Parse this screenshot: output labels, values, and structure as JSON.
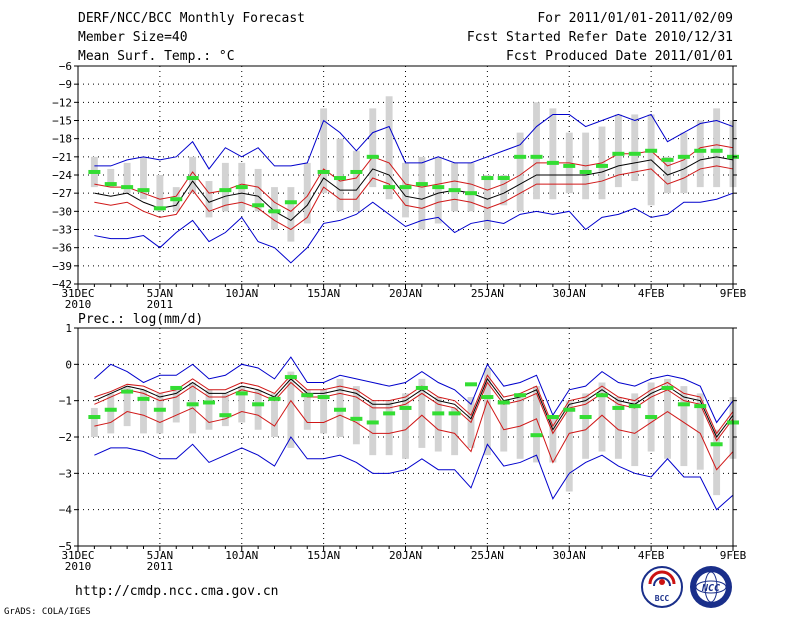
{
  "header": {
    "title": "DERF/NCC/BCC Monthly Forecast",
    "member_size": "Member Size=40",
    "variable": "Mean Surf. Temp.: °C",
    "period": "For 2011/01/01-2011/02/09",
    "started": "Fcst Started Refer Date 2010/12/31",
    "produced": "Fcst Produced Date 2011/01/01"
  },
  "footer": {
    "url": "http://cmdp.ncc.cma.gov.cn",
    "grads": "GrADS: COLA/IGES",
    "logo1_text": "BCC",
    "logo2_text": "NCC"
  },
  "colors": {
    "mean": "#000000",
    "spread": "#d01818",
    "extreme": "#0000cc",
    "observed": "#33dd33",
    "box": "#d3d3d3"
  },
  "chart_data": [
    {
      "type": "line",
      "title": "Mean Surf. Temp.: °C",
      "xlabel": "",
      "ylabel": "°C",
      "ylim": [
        -42,
        -6
      ],
      "yticks": [
        -6,
        -9,
        -12,
        -15,
        -18,
        -21,
        -24,
        -27,
        -30,
        -33,
        -36,
        -39,
        -42
      ],
      "xtick_days": [
        0,
        5,
        10,
        15,
        20,
        25,
        30,
        35,
        40
      ],
      "xtick_labels": [
        "31DEC",
        "5JAN",
        "10JAN",
        "15JAN",
        "20JAN",
        "25JAN",
        "30JAN",
        "4FEB",
        "9FEB"
      ],
      "xtick_sublabels": [
        "2010",
        "2011",
        "",
        "",
        "",
        "",
        "",
        "",
        ""
      ],
      "days": [
        1,
        2,
        3,
        4,
        5,
        6,
        7,
        8,
        9,
        10,
        11,
        12,
        13,
        14,
        15,
        16,
        17,
        18,
        19,
        20,
        21,
        22,
        23,
        24,
        25,
        26,
        27,
        28,
        29,
        30,
        31,
        32,
        33,
        34,
        35,
        36,
        37,
        38,
        39,
        40
      ],
      "series": [
        {
          "name": "ensemble max",
          "values": [
            -22.5,
            -22.5,
            -21.5,
            -21,
            -21.5,
            -21,
            -18.5,
            -23,
            -19.5,
            -21,
            -19.5,
            -22.5,
            -22.5,
            -22,
            -15,
            -17,
            -20,
            -17,
            -16,
            -22,
            -22,
            -21,
            -22,
            -22,
            -21,
            -20,
            -19,
            -16,
            -14,
            -14,
            -16,
            -15,
            -14,
            -15,
            -14,
            -18.5,
            -17,
            -15.5,
            -15,
            -16
          ]
        },
        {
          "name": "spread upper",
          "values": [
            -25.5,
            -26,
            -26,
            -27,
            -28,
            -27.5,
            -23.5,
            -27,
            -26.5,
            -25.5,
            -26,
            -28.5,
            -30,
            -27.5,
            -23,
            -25,
            -24.5,
            -21,
            -22,
            -25.5,
            -26,
            -25.5,
            -25,
            -25.5,
            -26.5,
            -25.5,
            -24,
            -22,
            -22,
            -22,
            -22.5,
            -22,
            -20.5,
            -20.5,
            -20,
            -22.5,
            -21.5,
            -19.5,
            -19,
            -19.5
          ]
        },
        {
          "name": "ensemble mean",
          "values": [
            -27,
            -27.5,
            -27,
            -28.5,
            -29.5,
            -29,
            -25,
            -28.5,
            -27.5,
            -27,
            -27.5,
            -30,
            -31.5,
            -29,
            -24.5,
            -26.5,
            -26.5,
            -23,
            -24,
            -27.5,
            -28,
            -27,
            -26.5,
            -27,
            -28,
            -27,
            -25.5,
            -24,
            -24,
            -24,
            -24,
            -23.5,
            -22.5,
            -22,
            -21.5,
            -24,
            -23,
            -21.5,
            -21,
            -21.5
          ]
        },
        {
          "name": "spread lower",
          "values": [
            -28.5,
            -29,
            -28.5,
            -30,
            -31,
            -30.5,
            -26.5,
            -30,
            -29,
            -28.5,
            -29.5,
            -31.5,
            -33,
            -31,
            -26,
            -28,
            -28,
            -24.5,
            -25.5,
            -29,
            -29.5,
            -28.5,
            -28,
            -28.5,
            -29.5,
            -28.5,
            -27,
            -25.5,
            -25.5,
            -25.5,
            -25.5,
            -25,
            -24,
            -23.5,
            -23,
            -25.5,
            -24.5,
            -23,
            -22.5,
            -23
          ]
        },
        {
          "name": "ensemble min",
          "values": [
            -34,
            -34.5,
            -34.5,
            -34,
            -36,
            -33.5,
            -31.5,
            -35,
            -33.5,
            -31,
            -35,
            -36,
            -38.5,
            -36,
            -32,
            -31.5,
            -30.5,
            -28.5,
            -30.5,
            -32.5,
            -31.5,
            -31,
            -33.5,
            -32,
            -31.5,
            -32,
            -30.5,
            -30,
            -30.5,
            -30,
            -33,
            -31,
            -30.5,
            -29.5,
            -31,
            -30.5,
            -28.5,
            -28.5,
            -28,
            -27
          ]
        }
      ],
      "boxes": [
        [
          -26,
          -21
        ],
        [
          -26,
          -23
        ],
        [
          -27,
          -22
        ],
        [
          -28,
          -21
        ],
        [
          -30,
          -24
        ],
        [
          -30,
          -26
        ],
        [
          -27,
          -21
        ],
        [
          -31,
          -25
        ],
        [
          -30,
          -22
        ],
        [
          -30,
          -22
        ],
        [
          -30,
          -23
        ],
        [
          -33,
          -26
        ],
        [
          -35,
          -26
        ],
        [
          -32,
          -22
        ],
        [
          -27,
          -13
        ],
        [
          -30,
          -18
        ],
        [
          -30,
          -20
        ],
        [
          -26,
          -13
        ],
        [
          -28,
          -11
        ],
        [
          -31,
          -22
        ],
        [
          -33,
          -21
        ],
        [
          -32,
          -21
        ],
        [
          -30,
          -22
        ],
        [
          -30,
          -22
        ],
        [
          -33,
          -24
        ],
        [
          -29,
          -24
        ],
        [
          -30,
          -17
        ],
        [
          -28,
          -12
        ],
        [
          -28,
          -13
        ],
        [
          -27,
          -17
        ],
        [
          -28,
          -17
        ],
        [
          -28,
          -16
        ],
        [
          -26,
          -14
        ],
        [
          -25,
          -14
        ],
        [
          -29,
          -14
        ],
        [
          -27,
          -21
        ],
        [
          -27,
          -17
        ],
        [
          -26,
          -15
        ],
        [
          -26,
          -13
        ],
        [
          -26,
          -15
        ]
      ],
      "observed": [
        -23.5,
        -25.5,
        -26,
        -26.5,
        -29.5,
        -28,
        -24.5,
        null,
        -26.5,
        -26,
        -29,
        -30,
        -28.5,
        null,
        -23.5,
        -24.5,
        -23.5,
        -21,
        -26,
        -26,
        -25.5,
        -26,
        -26.5,
        -27,
        -24.5,
        -24.5,
        -21,
        -21,
        -22,
        -22.5,
        -23.5,
        -22.5,
        -20.5,
        -20.5,
        -20,
        -21.5,
        -21,
        -20,
        -20,
        -21
      ]
    },
    {
      "type": "line",
      "title": "Prec.: log(mm/d)",
      "xlabel": "",
      "ylabel": "log(mm/d)",
      "ylim": [
        -5,
        1
      ],
      "yticks": [
        1,
        0,
        -1,
        -2,
        -3,
        -4,
        -5
      ],
      "xtick_days": [
        0,
        5,
        10,
        15,
        20,
        25,
        30,
        35,
        40
      ],
      "xtick_labels": [
        "31DEC",
        "5JAN",
        "10JAN",
        "15JAN",
        "20JAN",
        "25JAN",
        "30JAN",
        "4FEB",
        "9FEB"
      ],
      "xtick_sublabels": [
        "2010",
        "2011",
        "",
        "",
        "",
        "",
        "",
        "",
        ""
      ],
      "days": [
        1,
        2,
        3,
        4,
        5,
        6,
        7,
        8,
        9,
        10,
        11,
        12,
        13,
        14,
        15,
        16,
        17,
        18,
        19,
        20,
        21,
        22,
        23,
        24,
        25,
        26,
        27,
        28,
        29,
        30,
        31,
        32,
        33,
        34,
        35,
        36,
        37,
        38,
        39,
        40
      ],
      "series": [
        {
          "name": "ensemble max",
          "values": [
            -0.4,
            0,
            -0.2,
            -0.5,
            -0.3,
            -0.3,
            0,
            -0.4,
            -0.3,
            0,
            -0.1,
            -0.4,
            0.2,
            -0.5,
            -0.5,
            -0.3,
            -0.4,
            -0.5,
            -0.6,
            -0.5,
            -0.2,
            -0.5,
            -0.7,
            -1.1,
            0,
            -0.6,
            -0.5,
            -0.3,
            -1.4,
            -0.7,
            -0.6,
            -0.2,
            -0.5,
            -0.6,
            -0.4,
            -0.3,
            -0.4,
            -0.6,
            -1.6,
            -1
          ]
        },
        {
          "name": "spread upper",
          "values": [
            -1.1,
            -0.9,
            -0.7,
            -0.8,
            -1.0,
            -0.9,
            -0.6,
            -0.9,
            -0.9,
            -0.7,
            -0.8,
            -1.0,
            -0.5,
            -0.9,
            -0.9,
            -0.8,
            -0.9,
            -1.2,
            -1.2,
            -1.1,
            -0.8,
            -1.1,
            -1.2,
            -1.6,
            -0.5,
            -1.1,
            -1.0,
            -0.8,
            -1.9,
            -1.2,
            -1.1,
            -0.8,
            -1.1,
            -1.2,
            -0.9,
            -0.7,
            -1.0,
            -1.1,
            -2.1,
            -1.5
          ]
        },
        {
          "name": "ensemble mean",
          "values": [
            -1.0,
            -0.8,
            -0.6,
            -0.7,
            -0.9,
            -0.8,
            -0.5,
            -0.8,
            -0.8,
            -0.6,
            -0.7,
            -0.9,
            -0.4,
            -0.8,
            -0.8,
            -0.7,
            -0.8,
            -1.1,
            -1.1,
            -1.0,
            -0.7,
            -1.0,
            -1.1,
            -1.5,
            -0.4,
            -1.0,
            -0.9,
            -0.7,
            -1.8,
            -1.1,
            -1.0,
            -0.7,
            -1.0,
            -1.1,
            -0.8,
            -0.6,
            -0.9,
            -1.0,
            -2.0,
            -1.4
          ]
        },
        {
          "name": "spread lower",
          "values": [
            -1.7,
            -1.6,
            -1.3,
            -1.4,
            -1.6,
            -1.4,
            -1.2,
            -1.6,
            -1.5,
            -1.3,
            -1.4,
            -1.7,
            -1.0,
            -1.6,
            -1.6,
            -1.4,
            -1.6,
            -1.9,
            -1.9,
            -1.8,
            -1.4,
            -1.8,
            -1.9,
            -2.4,
            -1.0,
            -1.8,
            -1.7,
            -1.5,
            -2.7,
            -1.9,
            -1.8,
            -1.4,
            -1.8,
            -1.9,
            -1.6,
            -1.3,
            -1.6,
            -1.9,
            -2.9,
            -2.4
          ]
        },
        {
          "name": "ensemble min",
          "values": [
            -2.5,
            -2.3,
            -2.3,
            -2.4,
            -2.6,
            -2.6,
            -2.2,
            -2.7,
            -2.5,
            -2.3,
            -2.5,
            -2.8,
            -2.0,
            -2.6,
            -2.6,
            -2.5,
            -2.7,
            -3.0,
            -3.0,
            -2.9,
            -2.6,
            -2.9,
            -2.9,
            -3.4,
            -2.2,
            -2.8,
            -2.7,
            -2.5,
            -3.7,
            -3.0,
            -2.7,
            -2.5,
            -2.8,
            -3.0,
            -3.1,
            -2.6,
            -3.1,
            -3.1,
            -4.0,
            -3.6
          ]
        },
        {
          "name": "spread upper line",
          "values": [
            -0.9,
            -0.75,
            -0.55,
            -0.6,
            -0.8,
            -0.7,
            -0.4,
            -0.7,
            -0.7,
            -0.5,
            -0.6,
            -0.8,
            -0.3,
            -0.7,
            -0.7,
            -0.6,
            -0.7,
            -1.0,
            -1.0,
            -0.9,
            -0.6,
            -0.9,
            -1.0,
            -1.4,
            -0.3,
            -0.9,
            -0.8,
            -0.6,
            -1.7,
            -1.0,
            -0.9,
            -0.6,
            -0.9,
            -1.0,
            -0.7,
            -0.5,
            -0.8,
            -0.9,
            -1.9,
            -1.3
          ]
        }
      ],
      "boxes": [
        [
          -2,
          -1.2
        ],
        [
          -1.9,
          -0.8
        ],
        [
          -1.7,
          -0.6
        ],
        [
          -1.9,
          -0.7
        ],
        [
          -1.9,
          -0.8
        ],
        [
          -1.6,
          -0.6
        ],
        [
          -1.9,
          -0.5
        ],
        [
          -1.8,
          -0.7
        ],
        [
          -1.7,
          -0.8
        ],
        [
          -1.6,
          -0.6
        ],
        [
          -1.8,
          -0.7
        ],
        [
          -2,
          -0.8
        ],
        [
          -2.3,
          -0.2
        ],
        [
          -1.8,
          -0.7
        ],
        [
          -1.9,
          -0.7
        ],
        [
          -2,
          -0.4
        ],
        [
          -2.2,
          -0.6
        ],
        [
          -2.5,
          -1.0
        ],
        [
          -2.5,
          -1.0
        ],
        [
          -2.6,
          -0.8
        ],
        [
          -2.3,
          -0.4
        ],
        [
          -2.4,
          -0.9
        ],
        [
          -2.5,
          -1.2
        ],
        [
          -2.3,
          -0.9
        ],
        [
          -2.5,
          -0.1
        ],
        [
          -2.4,
          -1.0
        ],
        [
          -2.6,
          -0.9
        ],
        [
          -2.7,
          -0.6
        ],
        [
          -2.7,
          -1.5
        ],
        [
          -3.5,
          -1.0
        ],
        [
          -2.6,
          -0.8
        ],
        [
          -2.4,
          -0.5
        ],
        [
          -2.6,
          -0.9
        ],
        [
          -2.8,
          -0.8
        ],
        [
          -2.4,
          -0.5
        ],
        [
          -2.6,
          -0.4
        ],
        [
          -2.8,
          -0.6
        ],
        [
          -2.9,
          -0.8
        ],
        [
          -3.6,
          -1.8
        ],
        [
          -2.6,
          -0.9
        ]
      ],
      "observed": [
        -1.45,
        -1.25,
        -0.75,
        -0.95,
        -1.25,
        -0.65,
        -1.1,
        -1.05,
        -1.4,
        -0.8,
        -1.1,
        -0.95,
        -0.35,
        -0.85,
        -0.9,
        -1.25,
        -1.5,
        -1.6,
        -1.35,
        -1.2,
        -0.65,
        -1.35,
        -1.35,
        -0.55,
        -0.9,
        -1.05,
        -0.85,
        -1.95,
        -1.45,
        -1.25,
        -1.45,
        -0.85,
        -1.2,
        -1.15,
        -1.45,
        -0.65,
        -1.1,
        -1.15,
        -2.2,
        -1.6
      ]
    }
  ]
}
